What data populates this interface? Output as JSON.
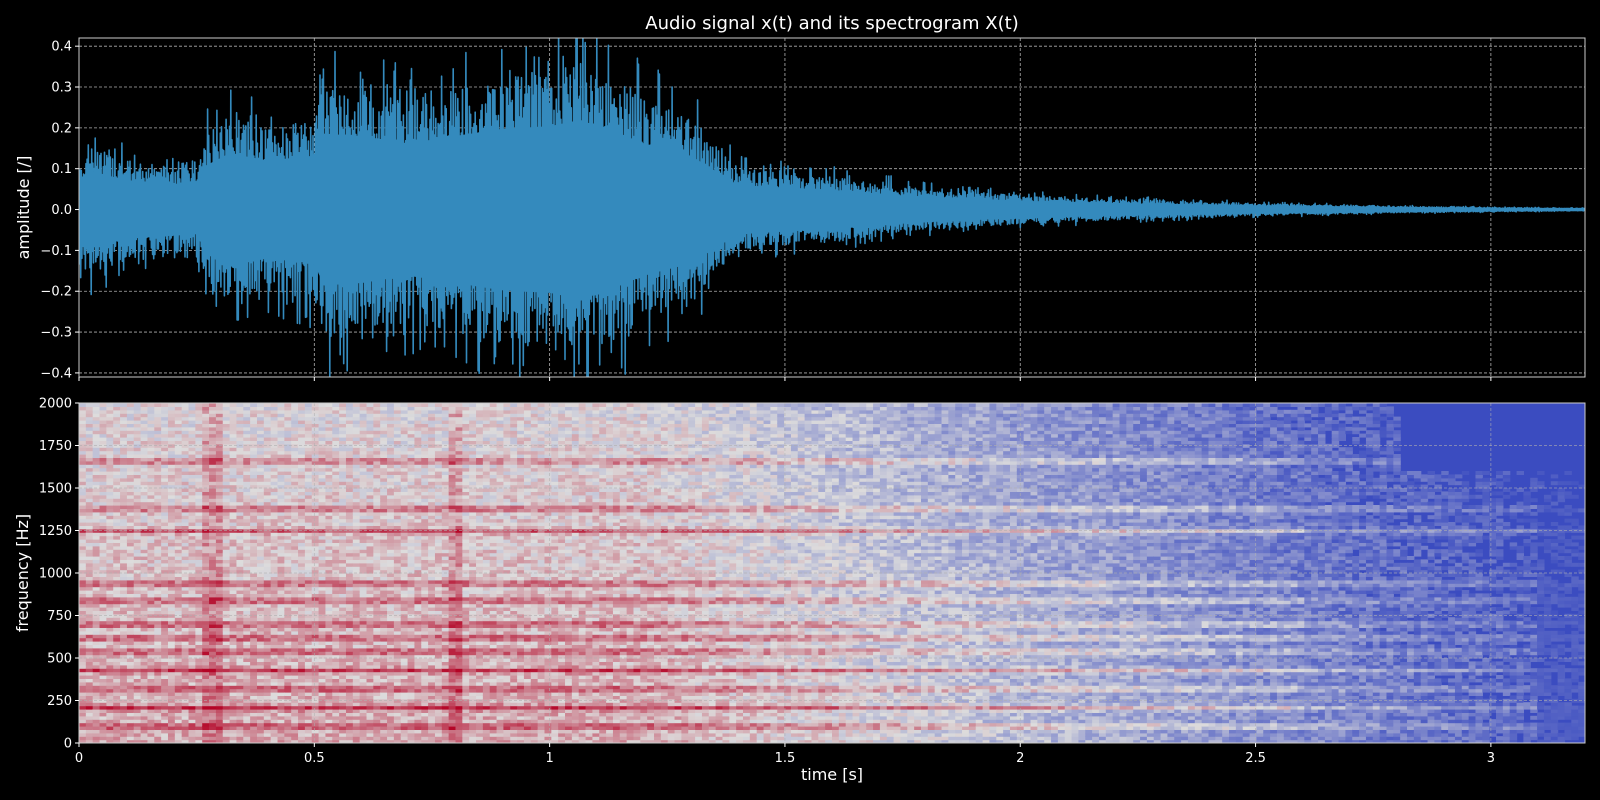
{
  "chart_data": [
    {
      "type": "line",
      "title": "Audio signal x(t) and its spectrogram X(t)",
      "xlabel": "",
      "ylabel": "amplitude [/]",
      "xlim": [
        0,
        3.2
      ],
      "ylim": [
        -0.41,
        0.42
      ],
      "x_ticks": [
        0,
        0.5,
        1,
        1.5,
        2,
        2.5,
        3
      ],
      "y_ticks": [
        -0.4,
        -0.3,
        -0.2,
        -0.1,
        0.0,
        0.1,
        0.2,
        0.3,
        0.4
      ],
      "y_tick_labels": [
        "−0.4",
        "−0.3",
        "−0.2",
        "−0.1",
        "0.0",
        "0.1",
        "0.2",
        "0.3",
        "0.4"
      ],
      "grid": true,
      "line_color": "#348abd",
      "envelope": {
        "t": [
          0,
          0.02,
          0.1,
          0.25,
          0.27,
          0.32,
          0.4,
          0.5,
          0.52,
          0.6,
          0.7,
          0.8,
          0.9,
          1.0,
          1.05,
          1.1,
          1.2,
          1.3,
          1.35,
          1.4,
          1.6,
          1.8,
          2.0,
          2.2,
          2.5,
          2.8,
          3.0,
          3.2
        ],
        "amplitude": [
          0.12,
          0.16,
          0.12,
          0.1,
          0.18,
          0.23,
          0.2,
          0.22,
          0.31,
          0.3,
          0.27,
          0.3,
          0.33,
          0.34,
          0.36,
          0.35,
          0.27,
          0.22,
          0.16,
          0.1,
          0.08,
          0.05,
          0.035,
          0.025,
          0.015,
          0.008,
          0.005,
          0.003
        ]
      }
    },
    {
      "type": "heatmap",
      "xlabel": "time [s]",
      "ylabel": "frequency [Hz]",
      "xlim": [
        0,
        3.2
      ],
      "ylim": [
        0,
        2000
      ],
      "x_ticks": [
        0,
        0.5,
        1,
        1.5,
        2,
        2.5,
        3
      ],
      "x_tick_labels": [
        "0",
        "0.5",
        "1",
        "1.5",
        "2",
        "2.5",
        "3"
      ],
      "y_ticks": [
        0,
        250,
        500,
        750,
        1000,
        1250,
        1500,
        1750,
        2000
      ],
      "grid": true,
      "colormap": "coolwarm",
      "colormap_low": "#3b4cc0",
      "colormap_mid": "#dddcdc",
      "colormap_high": "#b40426",
      "harmonics_hz": [
        100,
        210,
        320,
        430,
        540,
        620,
        700,
        840,
        940,
        1250,
        1380,
        1660
      ]
    }
  ]
}
